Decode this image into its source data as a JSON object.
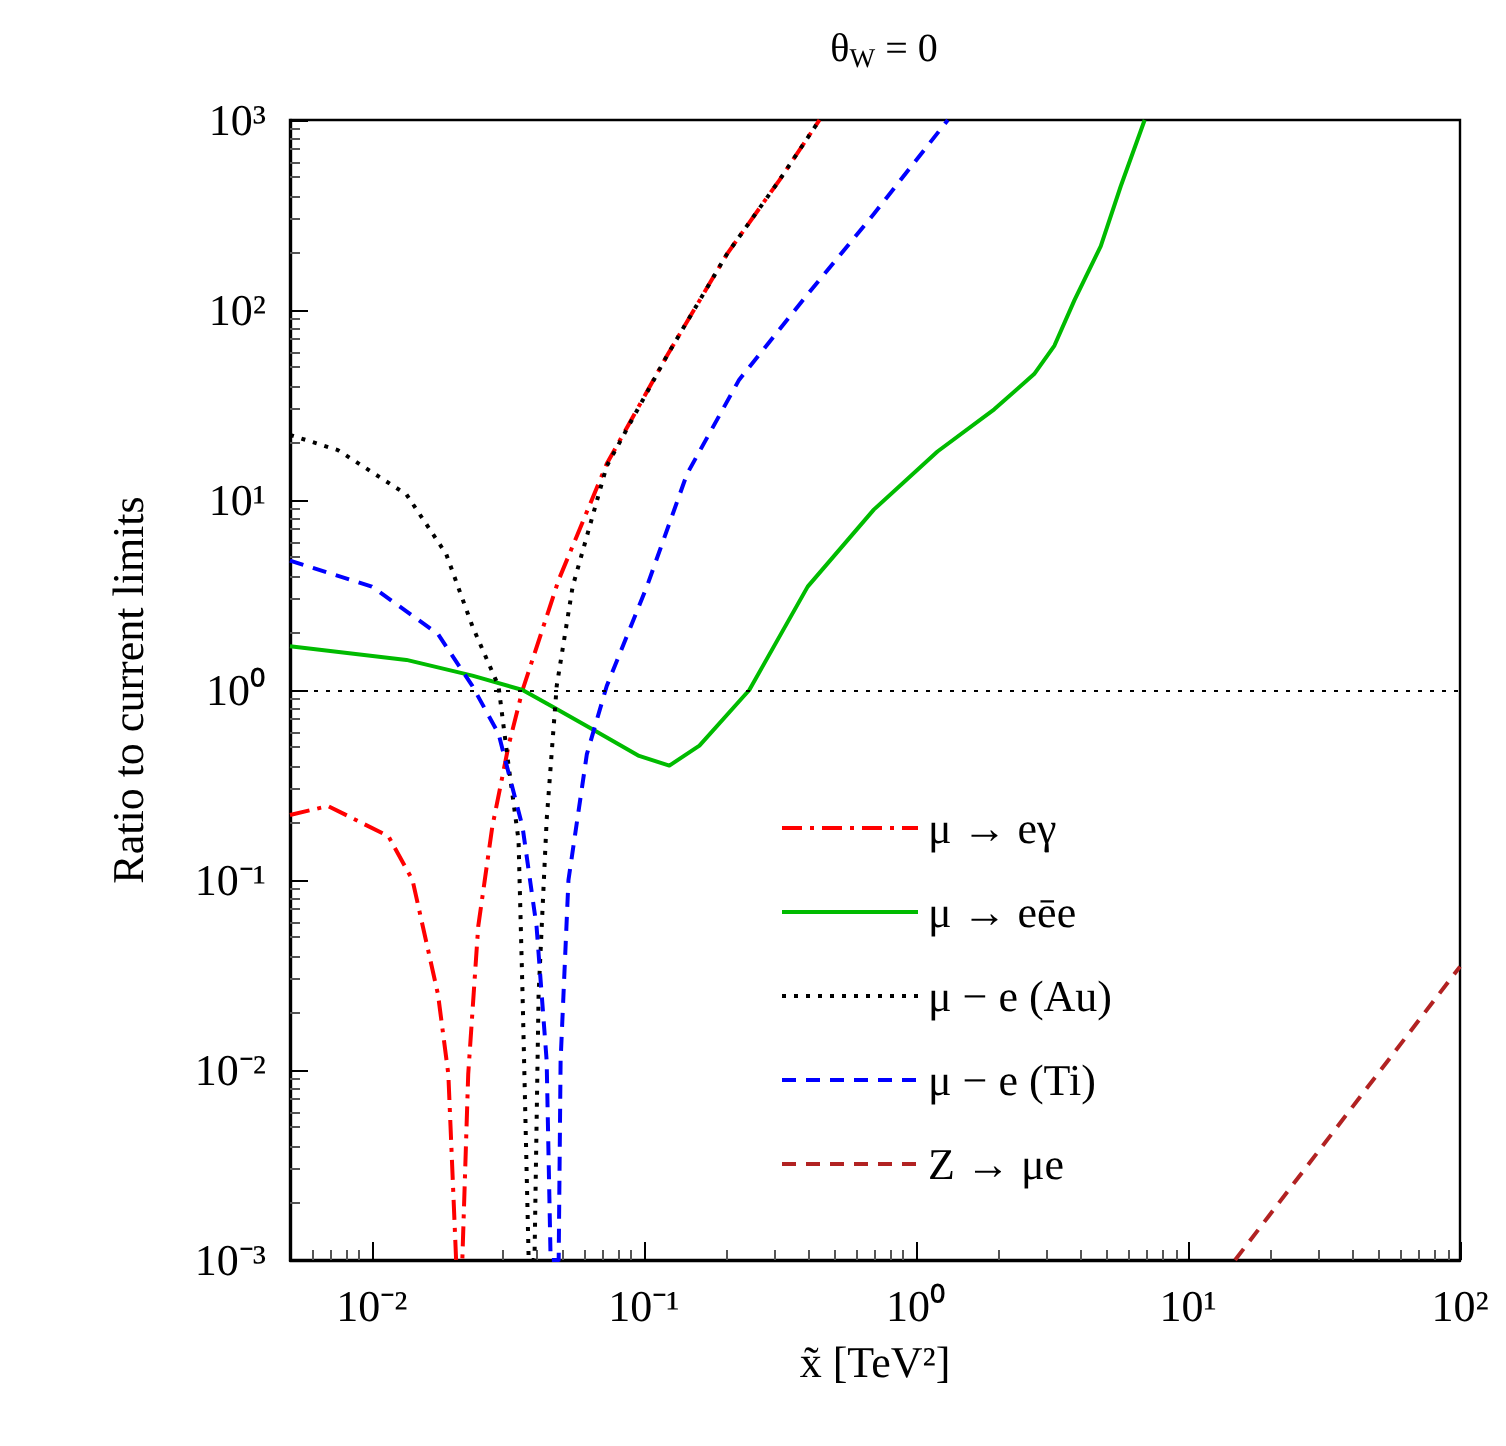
{
  "chart_data": {
    "type": "line",
    "title": "θ$_{W}$ = 0",
    "xlabel": "x̃ [TeV²]",
    "ylabel": "Ratio to current limits",
    "log": "xy",
    "grid": false,
    "legend": "bottom right",
    "marker": "none",
    "xlim": [
      0.005,
      100
    ],
    "ylim": [
      0.001,
      1000
    ],
    "xticks": [
      {
        "value": 0.01,
        "label": "10⁻²"
      },
      {
        "value": 0.1,
        "label": "10⁻¹"
      },
      {
        "value": 1,
        "label": "10⁰"
      },
      {
        "value": 10,
        "label": "10¹"
      },
      {
        "value": 100,
        "label": "10²"
      }
    ],
    "yticks": [
      {
        "value": 0.001,
        "label": "10⁻³"
      },
      {
        "value": 0.01,
        "label": "10⁻²"
      },
      {
        "value": 0.1,
        "label": "10⁻¹"
      },
      {
        "value": 1,
        "label": "10⁰"
      },
      {
        "value": 10,
        "label": "10¹"
      },
      {
        "value": 100,
        "label": "10²"
      },
      {
        "value": 1000,
        "label": "10³"
      }
    ],
    "ref_lines": [
      {
        "axis": "y",
        "value": 1,
        "label": null,
        "color": "#000000",
        "line_style": "dotted"
      }
    ],
    "series": [
      {
        "name": "μ → eγ",
        "color": "#ff0000",
        "line_style": "dashdot",
        "x": [
          0.005,
          0.0069,
          0.0115,
          0.0141,
          0.0175,
          0.0191,
          0.0204,
          0.0215,
          0.0226,
          0.0246,
          0.0277,
          0.0318,
          0.0358,
          0.0486,
          0.073,
          0.122,
          0.202,
          0.315,
          0.442
        ],
        "values": [
          0.22,
          0.245,
          0.17,
          0.1,
          0.025,
          0.0095,
          0.001,
          0.001,
          0.0095,
          0.057,
          0.19,
          0.51,
          1.0,
          3.8,
          15.5,
          58,
          197,
          483,
          1000
        ]
      },
      {
        "name": "μ → eēe",
        "color": "#00bb00",
        "line_style": "solid",
        "x": [
          0.005,
          0.0134,
          0.0234,
          0.0358,
          0.046,
          0.0649,
          0.096,
          0.124,
          0.16,
          0.244,
          0.4,
          0.7,
          1.2,
          1.94,
          2.72,
          3.23,
          3.83,
          4.78,
          5.66,
          6.93
        ],
        "values": [
          1.7,
          1.44,
          1.19,
          1.0,
          0.82,
          0.62,
          0.45,
          0.4,
          0.51,
          1.0,
          3.5,
          8.9,
          18,
          30,
          46,
          65,
          113,
          217,
          448,
          1000
        ]
      },
      {
        "name": "μ − e (Au)",
        "color": "#000000",
        "line_style": "dotted",
        "x": [
          0.005,
          0.0075,
          0.0134,
          0.01875,
          0.0234,
          0.0292,
          0.0318,
          0.0346,
          0.0358,
          0.0377,
          0.0396,
          0.041,
          0.0439,
          0.0478,
          0.0547,
          0.073,
          0.122,
          0.202,
          0.315,
          0.442
        ],
        "values": [
          22,
          18.3,
          10.7,
          5.2,
          2.17,
          1.05,
          0.4,
          0.162,
          0.025,
          0.001,
          0.001,
          0.025,
          0.207,
          1.05,
          3.5,
          15.1,
          58,
          197,
          483,
          1000
        ]
      },
      {
        "name": "μ − e (Ti)",
        "color": "#0000ff",
        "line_style": "dashed",
        "x": [
          0.005,
          0.01,
          0.0175,
          0.0234,
          0.0292,
          0.0358,
          0.0403,
          0.0439,
          0.0454,
          0.0486,
          0.0494,
          0.0528,
          0.0617,
          0.073,
          0.1025,
          0.144,
          0.224,
          0.4,
          0.7,
          1.31
        ],
        "values": [
          4.8,
          3.5,
          1.97,
          1.05,
          0.59,
          0.19,
          0.057,
          0.0112,
          0.001,
          0.001,
          0.0112,
          0.1,
          0.46,
          1.05,
          3.5,
          13.7,
          43,
          121,
          320,
          1000
        ]
      },
      {
        "name": "Z → μe",
        "color": "#b22222",
        "line_style": "dashed",
        "x": [
          14.9,
          100
        ],
        "values": [
          0.001,
          0.035
        ]
      }
    ]
  }
}
